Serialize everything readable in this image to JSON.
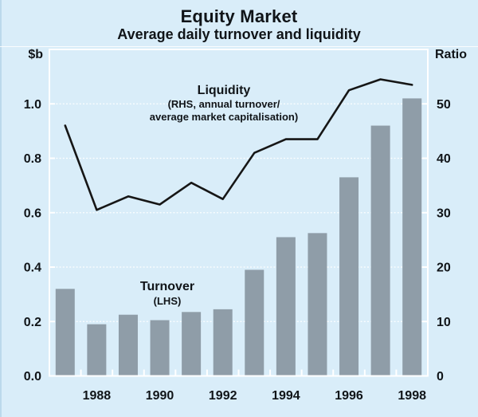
{
  "header": {
    "title": "Equity Market",
    "subtitle": "Average daily turnover and liquidity"
  },
  "axes": {
    "left_unit": "$b",
    "right_unit": "Ratio",
    "left_tick_labels": [
      "1.0",
      "0.8",
      "0.6",
      "0.4",
      "0.2",
      "0.0"
    ],
    "right_tick_labels": [
      "50",
      "40",
      "30",
      "20",
      "10",
      "0"
    ],
    "x_tick_labels": [
      "1988",
      "1990",
      "1992",
      "1994",
      "1996",
      "1998"
    ]
  },
  "annotations": {
    "liquidity_title": "Liquidity",
    "liquidity_sub1": "(RHS, annual turnover/",
    "liquidity_sub2": "average market capitalisation)",
    "turnover_title": "Turnover",
    "turnover_sub": "(LHS)"
  },
  "colors": {
    "background": "#d9edf9",
    "grid": "#ffffff",
    "bar": "#8f9da8",
    "line": "#161616",
    "text": "#101418"
  },
  "chart_data": {
    "type": "bar+line",
    "title": "Equity Market",
    "subtitle": "Average daily turnover and liquidity",
    "x": [
      1987,
      1988,
      1989,
      1990,
      1991,
      1992,
      1993,
      1994,
      1995,
      1996,
      1997,
      1998
    ],
    "series": [
      {
        "name": "Turnover",
        "type": "bar",
        "axis": "left",
        "unit": "$b",
        "values": [
          0.32,
          0.19,
          0.225,
          0.205,
          0.235,
          0.245,
          0.39,
          0.51,
          0.525,
          0.73,
          0.92,
          1.02
        ]
      },
      {
        "name": "Liquidity",
        "type": "line",
        "axis": "right",
        "unit": "ratio",
        "values": [
          46,
          30.5,
          33,
          31.5,
          35.5,
          32.5,
          41,
          43.5,
          43.5,
          52.5,
          54.5,
          53.5
        ]
      }
    ],
    "left_axis": {
      "label": "$b",
      "min": 0,
      "max": 1.2,
      "ticks": [
        1.0,
        0.8,
        0.6,
        0.4,
        0.2,
        0.0
      ]
    },
    "right_axis": {
      "label": "Ratio",
      "min": 0,
      "max": 60,
      "ticks": [
        50,
        40,
        30,
        20,
        10,
        0
      ]
    },
    "x_axis": {
      "labeled_years": [
        1988,
        1990,
        1992,
        1994,
        1996,
        1998
      ]
    },
    "grid": true,
    "legend_position": "in-plot annotations"
  }
}
